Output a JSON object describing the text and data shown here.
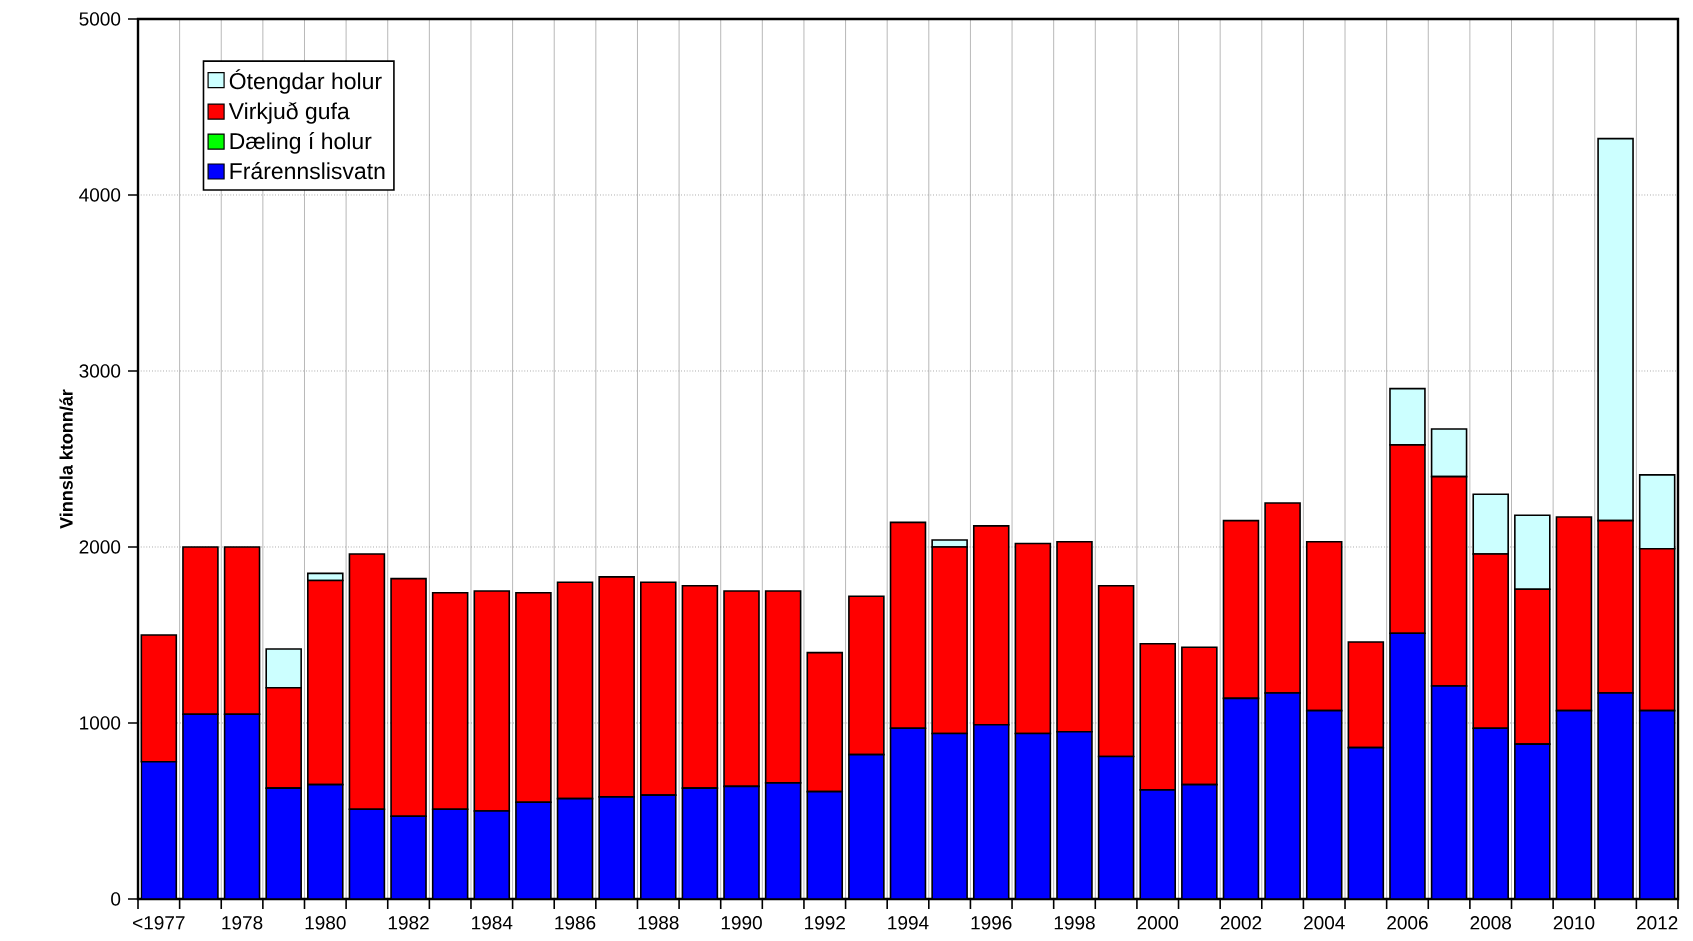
{
  "chart_data": {
    "type": "bar",
    "stacked": true,
    "ylabel": "Vinnsla ktonn/ár",
    "categories": [
      "<1977",
      null,
      "1978",
      null,
      "1980",
      null,
      "1982",
      null,
      "1984",
      null,
      "1986",
      null,
      "1988",
      null,
      "1990",
      null,
      "1992",
      null,
      "1994",
      null,
      "1996",
      null,
      "1998",
      null,
      "2000",
      null,
      "2002",
      null,
      "2004",
      null,
      "2006",
      null,
      "2008",
      null,
      "2010",
      null,
      "2012"
    ],
    "series": [
      {
        "name": "Frárennslisvatn",
        "color": "#0000ff",
        "values": [
          780,
          1050,
          1050,
          630,
          650,
          510,
          470,
          510,
          500,
          550,
          570,
          580,
          590,
          630,
          640,
          660,
          610,
          820,
          970,
          940,
          990,
          940,
          950,
          810,
          620,
          650,
          1140,
          1170,
          1070,
          860,
          1510,
          1210,
          970,
          880,
          1070,
          1170,
          1070
        ]
      },
      {
        "name": "Dæling í holur",
        "color": "#00ff00",
        "values": [
          0,
          0,
          0,
          0,
          0,
          0,
          0,
          0,
          0,
          0,
          0,
          0,
          0,
          0,
          0,
          0,
          0,
          0,
          0,
          0,
          0,
          0,
          0,
          0,
          0,
          0,
          0,
          0,
          0,
          0,
          0,
          0,
          0,
          0,
          0,
          0,
          0
        ]
      },
      {
        "name": "Virkjuð gufa",
        "color": "#ff0000",
        "values": [
          720,
          950,
          950,
          570,
          1160,
          1450,
          1350,
          1230,
          1250,
          1190,
          1230,
          1250,
          1210,
          1150,
          1110,
          1090,
          790,
          900,
          1170,
          1060,
          1130,
          1080,
          1080,
          970,
          830,
          780,
          1010,
          1080,
          960,
          600,
          1070,
          1190,
          990,
          880,
          1100,
          980,
          920
        ]
      },
      {
        "name": "Ótengdar holur",
        "color": "#ccffff",
        "values": [
          0,
          0,
          0,
          220,
          40,
          0,
          0,
          0,
          0,
          0,
          0,
          0,
          0,
          0,
          0,
          0,
          0,
          0,
          0,
          40,
          0,
          0,
          0,
          0,
          0,
          0,
          0,
          0,
          0,
          0,
          320,
          270,
          340,
          420,
          0,
          2170,
          420
        ]
      }
    ],
    "ylim": [
      0,
      5000
    ],
    "yticks": [
      0,
      1000,
      2000,
      3000,
      4000,
      5000
    ],
    "grid": true,
    "legend": "top left"
  }
}
